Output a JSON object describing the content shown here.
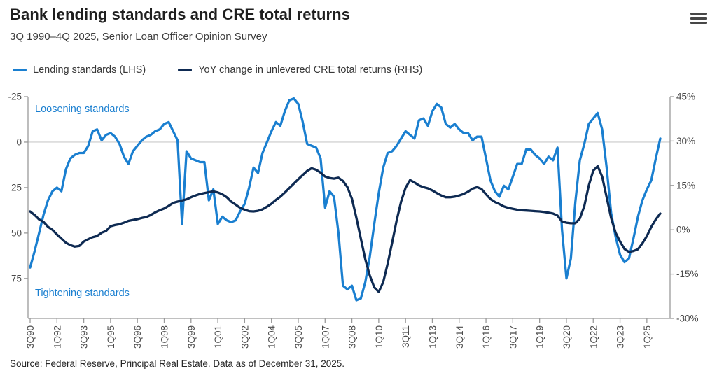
{
  "header": {
    "title": "Bank lending standards and CRE total returns",
    "subtitle": "3Q 1990–4Q 2025, Senior Loan Officer Opinion Survey"
  },
  "menu": {
    "icon": "hamburger-menu-icon"
  },
  "legend": [
    {
      "label": "Lending standards (LHS)",
      "color": "#1a7fd0"
    },
    {
      "label": "YoY change in unlevered CRE total returns (RHS)",
      "color": "#0e2a52"
    }
  ],
  "source": "Source: Federal Reserve, Principal Real Estate. Data as of December 31, 2025.",
  "colors": {
    "lending_line": "#1a7fd0",
    "returns_line": "#0e2a52",
    "annotation_blue": "#1a7fd0",
    "axis_line": "#9a9a9a",
    "gridline": "#c9c9c9",
    "axis_label": "#4a4a4a"
  },
  "chart_data": {
    "type": "line",
    "title": "Bank lending standards and CRE total returns",
    "subtitle": "3Q 1990–4Q 2025, Senior Loan Officer Opinion Survey",
    "frequency": "quarterly",
    "x_range": "3Q 1990 – 4Q 2025",
    "x_tick_labels": [
      "3Q90",
      "1Q92",
      "3Q93",
      "1Q95",
      "3Q96",
      "1Q98",
      "3Q99",
      "1Q01",
      "3Q02",
      "1Q04",
      "3Q05",
      "1Q07",
      "3Q08",
      "1Q10",
      "3Q11",
      "1Q13",
      "3Q14",
      "1Q16",
      "3Q17",
      "1Q19",
      "3Q20",
      "1Q22",
      "3Q23",
      "1Q25"
    ],
    "left_axis": {
      "tick_labels": [
        "-25",
        "0",
        "25",
        "50",
        "75"
      ],
      "tick_values": [
        -25,
        0,
        25,
        50,
        75
      ],
      "top_value": -25,
      "bottom_value": 97,
      "reversed": true,
      "gridline_at": 0
    },
    "right_axis": {
      "tick_labels": [
        "45%",
        "30%",
        "15%",
        "0%",
        "-15%",
        "-30%"
      ],
      "tick_values": [
        45,
        30,
        15,
        0,
        -15,
        -30
      ],
      "top_value": 45,
      "bottom_value": -30
    },
    "annotations": [
      {
        "text": "Loosening standards",
        "position": "top-left"
      },
      {
        "text": "Tightening standards",
        "position": "bottom-left"
      }
    ],
    "series": [
      {
        "name": "Lending standards (LHS)",
        "axis": "left",
        "color": "#1a7fd0",
        "values": [
          69,
          60,
          50,
          40,
          32,
          27,
          25,
          27,
          15,
          9,
          7,
          6,
          6,
          2,
          -6,
          -7,
          -1,
          -4,
          -5,
          -3,
          1,
          8,
          12,
          5,
          2,
          -1,
          -3,
          -4,
          -6,
          -7,
          -10,
          -11,
          -6,
          -1,
          45,
          5,
          9,
          10,
          11,
          11,
          32,
          26,
          45,
          41,
          43,
          44,
          43,
          38,
          34,
          25,
          14,
          17,
          6,
          0,
          -6,
          -11,
          -9,
          -17,
          -23,
          -24,
          -21,
          -11,
          1,
          2,
          3,
          9,
          36,
          27,
          30,
          50,
          79,
          81,
          79,
          87,
          86,
          77,
          63,
          45,
          28,
          14,
          6,
          5,
          2,
          -2,
          -6,
          -4,
          -2,
          -12,
          -13,
          -9,
          -17,
          -21,
          -19,
          -10,
          -8,
          -10,
          -7,
          -5,
          -5,
          -1,
          -3,
          -3,
          9,
          21,
          27,
          30,
          24,
          26,
          19,
          12,
          12,
          4,
          4,
          7,
          9,
          12,
          8,
          10,
          3,
          48,
          75,
          64,
          33,
          10,
          1,
          -10,
          -13,
          -16,
          -7,
          14,
          39,
          52,
          62,
          66,
          64,
          53,
          41,
          32,
          26,
          21,
          9,
          -2
        ]
      },
      {
        "name": "YoY change in unlevered CRE total returns (RHS)",
        "axis": "right",
        "color": "#0e2a52",
        "values": [
          6.2,
          5,
          3.5,
          2.7,
          1,
          0,
          -1.6,
          -3,
          -4.4,
          -5.2,
          -5.7,
          -5.5,
          -4,
          -3.2,
          -2.5,
          -2.1,
          -1,
          -0.4,
          1.2,
          1.6,
          1.9,
          2.4,
          3,
          3.3,
          3.6,
          4,
          4.3,
          5,
          5.9,
          6.6,
          7.2,
          8.1,
          9.1,
          9.5,
          9.9,
          10.3,
          11,
          11.6,
          12.1,
          12.4,
          12.7,
          13,
          12.6,
          12,
          11,
          9.5,
          8.5,
          7.4,
          6.8,
          6.3,
          6.2,
          6.4,
          6.9,
          7.8,
          8.8,
          10.1,
          11.2,
          12.6,
          14.1,
          15.6,
          17.1,
          18.5,
          19.9,
          20.8,
          20.3,
          19.3,
          18,
          17.5,
          17.3,
          17.6,
          16.5,
          14.4,
          10.5,
          4,
          -3,
          -10,
          -15.5,
          -19.5,
          -21,
          -17.7,
          -11.5,
          -4.4,
          3.1,
          9.5,
          14.2,
          16.8,
          16,
          15,
          14.4,
          14,
          13.3,
          12.4,
          11.6,
          11,
          11,
          11.2,
          11.6,
          12.1,
          12.9,
          13.9,
          14.4,
          13.8,
          12,
          10.4,
          9.4,
          8.7,
          7.9,
          7.4,
          7.1,
          6.8,
          6.6,
          6.5,
          6.4,
          6.3,
          6.2,
          6,
          5.8,
          5.5,
          4.8,
          2.8,
          2.4,
          2.2,
          2.2,
          3.8,
          8,
          15,
          20,
          21.5,
          18,
          11,
          4,
          -1,
          -4,
          -6.5,
          -7.5,
          -7.2,
          -6.6,
          -4.6,
          -2.1,
          1,
          3.5,
          5.5
        ]
      }
    ]
  }
}
